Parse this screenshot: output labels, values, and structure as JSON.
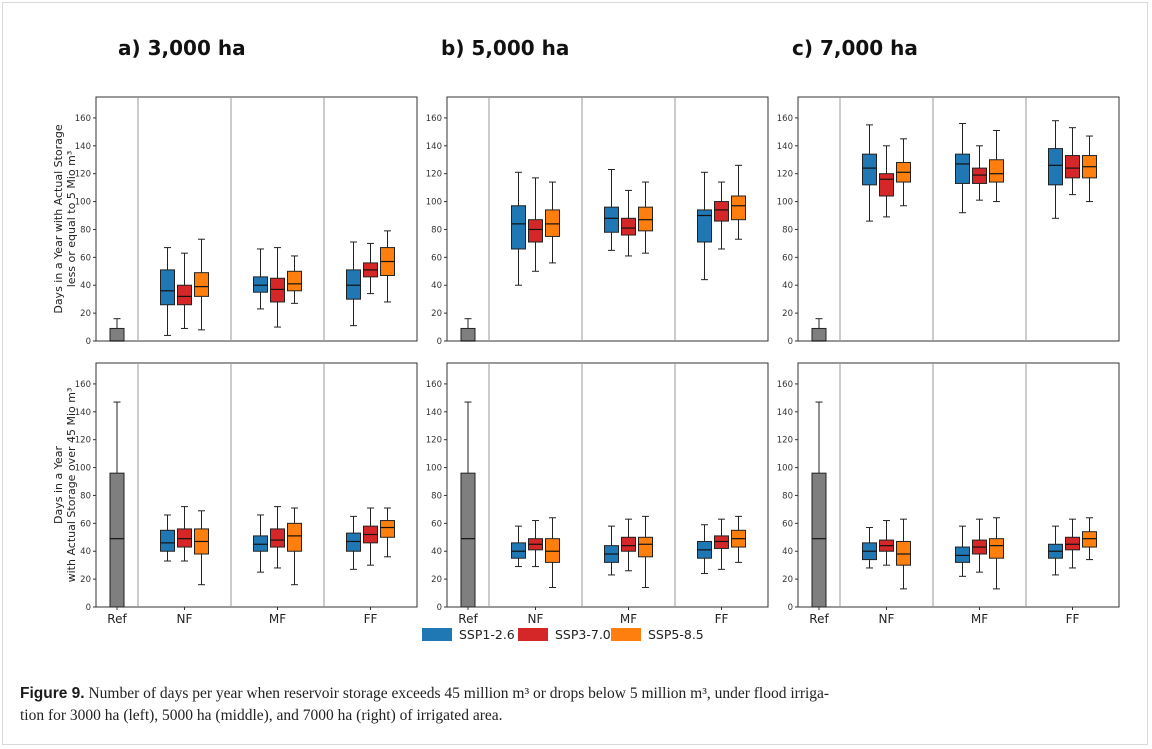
{
  "figure_label": "Figure 9.",
  "caption_lines": [
    "Number of days per year when reservoir storage exceeds 45 million m³ or drops below 5 million m³, under flood irriga-",
    "tion for 3000 ha (left), 5000 ha (middle), and 7000 ha (right) of irrigated area."
  ],
  "colors": {
    "SSP1-2.6": "#1f77b4",
    "SSP3-7.0": "#d62728",
    "SSP5-8.5": "#ff7f0e",
    "Ref": "#7f7f7f"
  },
  "chart_data": {
    "type": "box",
    "categories": [
      "Ref",
      "NF",
      "MF",
      "FF"
    ],
    "legend": {
      "placement": "bottom-center",
      "entries": [
        "SSP1-2.6",
        "SSP3-7.0",
        "SSP5-8.5"
      ]
    },
    "panel_titles": [
      "a) 3,000 ha",
      "b) 5,000 ha",
      "c) 7,000 ha"
    ],
    "row_ylabels": [
      [
        "Days in a Year with Actual Storage",
        "less or equal to 5 Mio m³"
      ],
      [
        "Days in a Year",
        "with Actual Storage over 45 Mio m³"
      ]
    ],
    "yticks": [
      0,
      20,
      40,
      60,
      80,
      100,
      120,
      140,
      160
    ],
    "ylim": [
      0,
      175
    ],
    "rows": [
      {
        "panels": [
          {
            "ref": {
              "min": 0,
              "q1": 0,
              "median": 0,
              "q3": 9,
              "max": 16
            },
            "groups": [
              [
                {
                  "series": "SSP1-2.6",
                  "min": 4,
                  "q1": 26,
                  "median": 36,
                  "q3": 51,
                  "max": 67
                },
                {
                  "series": "SSP3-7.0",
                  "min": 9,
                  "q1": 26,
                  "median": 32,
                  "q3": 40,
                  "max": 63
                },
                {
                  "series": "SSP5-8.5",
                  "min": 8,
                  "q1": 32,
                  "median": 39,
                  "q3": 49,
                  "max": 73
                }
              ],
              [
                {
                  "series": "SSP1-2.6",
                  "min": 23,
                  "q1": 35,
                  "median": 40,
                  "q3": 46,
                  "max": 66
                },
                {
                  "series": "SSP3-7.0",
                  "min": 10,
                  "q1": 28,
                  "median": 37,
                  "q3": 45,
                  "max": 67
                },
                {
                  "series": "SSP5-8.5",
                  "min": 27,
                  "q1": 36,
                  "median": 41,
                  "q3": 50,
                  "max": 61
                }
              ],
              [
                {
                  "series": "SSP1-2.6",
                  "min": 11,
                  "q1": 30,
                  "median": 40,
                  "q3": 51,
                  "max": 71
                },
                {
                  "series": "SSP3-7.0",
                  "min": 34,
                  "q1": 46,
                  "median": 51,
                  "q3": 56,
                  "max": 70
                },
                {
                  "series": "SSP5-8.5",
                  "min": 28,
                  "q1": 47,
                  "median": 57,
                  "q3": 67,
                  "max": 79
                }
              ]
            ]
          },
          {
            "ref": {
              "min": 0,
              "q1": 0,
              "median": 0,
              "q3": 9,
              "max": 16
            },
            "groups": [
              [
                {
                  "series": "SSP1-2.6",
                  "min": 40,
                  "q1": 66,
                  "median": 84,
                  "q3": 97,
                  "max": 121
                },
                {
                  "series": "SSP3-7.0",
                  "min": 50,
                  "q1": 71,
                  "median": 80,
                  "q3": 87,
                  "max": 117
                },
                {
                  "series": "SSP5-8.5",
                  "min": 56,
                  "q1": 75,
                  "median": 84,
                  "q3": 94,
                  "max": 114
                }
              ],
              [
                {
                  "series": "SSP1-2.6",
                  "min": 65,
                  "q1": 78,
                  "median": 88,
                  "q3": 96,
                  "max": 123
                },
                {
                  "series": "SSP3-7.0",
                  "min": 61,
                  "q1": 76,
                  "median": 81,
                  "q3": 88,
                  "max": 108
                },
                {
                  "series": "SSP5-8.5",
                  "min": 63,
                  "q1": 79,
                  "median": 87,
                  "q3": 96,
                  "max": 114
                }
              ],
              [
                {
                  "series": "SSP1-2.6",
                  "min": 44,
                  "q1": 71,
                  "median": 90,
                  "q3": 94,
                  "max": 121
                },
                {
                  "series": "SSP3-7.0",
                  "min": 66,
                  "q1": 86,
                  "median": 94,
                  "q3": 100,
                  "max": 114
                },
                {
                  "series": "SSP5-8.5",
                  "min": 73,
                  "q1": 87,
                  "median": 97,
                  "q3": 104,
                  "max": 126
                }
              ]
            ]
          },
          {
            "ref": {
              "min": 0,
              "q1": 0,
              "median": 0,
              "q3": 9,
              "max": 16
            },
            "groups": [
              [
                {
                  "series": "SSP1-2.6",
                  "min": 86,
                  "q1": 112,
                  "median": 124,
                  "q3": 134,
                  "max": 155
                },
                {
                  "series": "SSP3-7.0",
                  "min": 89,
                  "q1": 104,
                  "median": 116,
                  "q3": 120,
                  "max": 140
                },
                {
                  "series": "SSP5-8.5",
                  "min": 97,
                  "q1": 114,
                  "median": 121,
                  "q3": 128,
                  "max": 145
                }
              ],
              [
                {
                  "series": "SSP1-2.6",
                  "min": 92,
                  "q1": 113,
                  "median": 127,
                  "q3": 134,
                  "max": 156
                },
                {
                  "series": "SSP3-7.0",
                  "min": 101,
                  "q1": 113,
                  "median": 119,
                  "q3": 124,
                  "max": 140
                },
                {
                  "series": "SSP5-8.5",
                  "min": 100,
                  "q1": 114,
                  "median": 120,
                  "q3": 130,
                  "max": 151
                }
              ],
              [
                {
                  "series": "SSP1-2.6",
                  "min": 88,
                  "q1": 112,
                  "median": 126,
                  "q3": 138,
                  "max": 158
                },
                {
                  "series": "SSP3-7.0",
                  "min": 105,
                  "q1": 117,
                  "median": 124,
                  "q3": 133,
                  "max": 153
                },
                {
                  "series": "SSP5-8.5",
                  "min": 100,
                  "q1": 117,
                  "median": 125,
                  "q3": 133,
                  "max": 147
                }
              ]
            ]
          }
        ]
      },
      {
        "panels": [
          {
            "ref": {
              "min": 0,
              "q1": 0,
              "median": 49,
              "q3": 96,
              "max": 147
            },
            "groups": [
              [
                {
                  "series": "SSP1-2.6",
                  "min": 33,
                  "q1": 40,
                  "median": 46,
                  "q3": 55,
                  "max": 66
                },
                {
                  "series": "SSP3-7.0",
                  "min": 33,
                  "q1": 43,
                  "median": 49,
                  "q3": 56,
                  "max": 72
                },
                {
                  "series": "SSP5-8.5",
                  "min": 16,
                  "q1": 38,
                  "median": 47,
                  "q3": 56,
                  "max": 69
                }
              ],
              [
                {
                  "series": "SSP1-2.6",
                  "min": 25,
                  "q1": 40,
                  "median": 45,
                  "q3": 51,
                  "max": 66
                },
                {
                  "series": "SSP3-7.0",
                  "min": 28,
                  "q1": 43,
                  "median": 48,
                  "q3": 56,
                  "max": 72
                },
                {
                  "series": "SSP5-8.5",
                  "min": 16,
                  "q1": 40,
                  "median": 51,
                  "q3": 60,
                  "max": 71
                }
              ],
              [
                {
                  "series": "SSP1-2.6",
                  "min": 27,
                  "q1": 40,
                  "median": 47,
                  "q3": 53,
                  "max": 65
                },
                {
                  "series": "SSP3-7.0",
                  "min": 30,
                  "q1": 46,
                  "median": 52,
                  "q3": 58,
                  "max": 71
                },
                {
                  "series": "SSP5-8.5",
                  "min": 36,
                  "q1": 50,
                  "median": 57,
                  "q3": 62,
                  "max": 71
                }
              ]
            ]
          },
          {
            "ref": {
              "min": 0,
              "q1": 0,
              "median": 49,
              "q3": 96,
              "max": 147
            },
            "groups": [
              [
                {
                  "series": "SSP1-2.6",
                  "min": 29,
                  "q1": 35,
                  "median": 40,
                  "q3": 46,
                  "max": 58
                },
                {
                  "series": "SSP3-7.0",
                  "min": 29,
                  "q1": 41,
                  "median": 45,
                  "q3": 49,
                  "max": 62
                },
                {
                  "series": "SSP5-8.5",
                  "min": 14,
                  "q1": 32,
                  "median": 40,
                  "q3": 49,
                  "max": 64
                }
              ],
              [
                {
                  "series": "SSP1-2.6",
                  "min": 23,
                  "q1": 32,
                  "median": 38,
                  "q3": 44,
                  "max": 58
                },
                {
                  "series": "SSP3-7.0",
                  "min": 26,
                  "q1": 40,
                  "median": 44,
                  "q3": 50,
                  "max": 63
                },
                {
                  "series": "SSP5-8.5",
                  "min": 14,
                  "q1": 36,
                  "median": 45,
                  "q3": 50,
                  "max": 65
                }
              ],
              [
                {
                  "series": "SSP1-2.6",
                  "min": 24,
                  "q1": 35,
                  "median": 41,
                  "q3": 47,
                  "max": 59
                },
                {
                  "series": "SSP3-7.0",
                  "min": 27,
                  "q1": 42,
                  "median": 47,
                  "q3": 51,
                  "max": 63
                },
                {
                  "series": "SSP5-8.5",
                  "min": 32,
                  "q1": 43,
                  "median": 49,
                  "q3": 55,
                  "max": 65
                }
              ]
            ]
          },
          {
            "ref": {
              "min": 0,
              "q1": 0,
              "median": 49,
              "q3": 96,
              "max": 147
            },
            "groups": [
              [
                {
                  "series": "SSP1-2.6",
                  "min": 28,
                  "q1": 34,
                  "median": 40,
                  "q3": 46,
                  "max": 57
                },
                {
                  "series": "SSP3-7.0",
                  "min": 30,
                  "q1": 40,
                  "median": 44,
                  "q3": 48,
                  "max": 62
                },
                {
                  "series": "SSP5-8.5",
                  "min": 13,
                  "q1": 30,
                  "median": 38,
                  "q3": 47,
                  "max": 63
                }
              ],
              [
                {
                  "series": "SSP1-2.6",
                  "min": 22,
                  "q1": 32,
                  "median": 37,
                  "q3": 43,
                  "max": 58
                },
                {
                  "series": "SSP3-7.0",
                  "min": 25,
                  "q1": 38,
                  "median": 43,
                  "q3": 48,
                  "max": 63
                },
                {
                  "series": "SSP5-8.5",
                  "min": 13,
                  "q1": 35,
                  "median": 44,
                  "q3": 49,
                  "max": 64
                }
              ],
              [
                {
                  "series": "SSP1-2.6",
                  "min": 23,
                  "q1": 35,
                  "median": 40,
                  "q3": 45,
                  "max": 58
                },
                {
                  "series": "SSP3-7.0",
                  "min": 28,
                  "q1": 41,
                  "median": 45,
                  "q3": 50,
                  "max": 63
                },
                {
                  "series": "SSP5-8.5",
                  "min": 34,
                  "q1": 43,
                  "median": 49,
                  "q3": 54,
                  "max": 64
                }
              ]
            ]
          }
        ]
      }
    ]
  }
}
